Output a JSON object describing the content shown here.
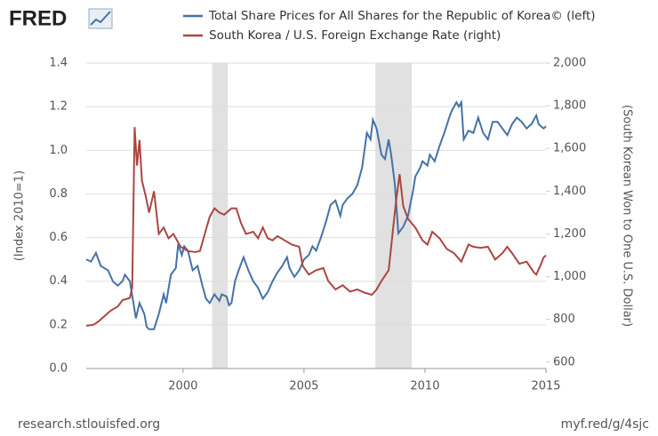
{
  "chart_data": {
    "type": "line",
    "logo": "FRED",
    "source": "research.stlouisfed.org",
    "link": "myf.red/g/4sjc",
    "ylabel": "(Index 2010=1)",
    "y2label": "(South Korean Won to One U.S. Dollar)",
    "xlim": [
      1996,
      2015
    ],
    "xticks": [
      2000,
      2005,
      2010,
      2015
    ],
    "ylim": [
      0,
      1.4
    ],
    "yticks": [
      {
        "value": 0,
        "label": "0.0"
      },
      0.2,
      0.4,
      0.6,
      0.8,
      {
        "value": 1,
        "label": "1.0"
      },
      1.2,
      1.4
    ],
    "y2lim": [
      570,
      2000
    ],
    "y2ticks": [
      600,
      800,
      {
        "value": 1000,
        "label": "1,000"
      },
      {
        "value": 1200,
        "label": "1,200"
      },
      {
        "value": 1400,
        "label": "1,400"
      },
      {
        "value": 1600,
        "label": "1,600"
      },
      {
        "value": 1800,
        "label": "1,800"
      },
      {
        "value": 2000,
        "label": "2,000"
      }
    ],
    "grid": true,
    "recessions": [
      [
        2001.2,
        2001.85
      ],
      [
        2007.95,
        2009.45
      ]
    ],
    "recession_color": "#e1e1e1",
    "series": [
      {
        "name": "Total Share Prices for All Shares for the Republic of Korea© (left)",
        "color": "#4572a7",
        "axis": "y",
        "x": [
          1996.0,
          1996.2,
          1996.4,
          1996.6,
          1996.9,
          1997.1,
          1997.3,
          1997.5,
          1997.6,
          1997.8,
          1997.95,
          1998.05,
          1998.2,
          1998.4,
          1998.5,
          1998.6,
          1998.8,
          1999.0,
          1999.2,
          1999.3,
          1999.5,
          1999.7,
          1999.8,
          1999.95,
          2000.05,
          2000.2,
          2000.4,
          2000.6,
          2000.8,
          2000.95,
          2001.1,
          2001.3,
          2001.5,
          2001.6,
          2001.8,
          2001.9,
          2002.0,
          2002.15,
          2002.3,
          2002.5,
          2002.7,
          2002.9,
          2003.1,
          2003.3,
          2003.5,
          2003.7,
          2003.9,
          2004.1,
          2004.3,
          2004.4,
          2004.6,
          2004.8,
          2005.0,
          2005.2,
          2005.35,
          2005.5,
          2005.7,
          2005.9,
          2006.1,
          2006.3,
          2006.5,
          2006.6,
          2006.8,
          2007.0,
          2007.2,
          2007.4,
          2007.5,
          2007.6,
          2007.75,
          2007.85,
          2008.0,
          2008.2,
          2008.35,
          2008.5,
          2008.6,
          2008.75,
          2008.9,
          2009.1,
          2009.3,
          2009.5,
          2009.6,
          2009.8,
          2009.9,
          2010.1,
          2010.2,
          2010.4,
          2010.6,
          2010.8,
          2011.0,
          2011.1,
          2011.3,
          2011.4,
          2011.5,
          2011.6,
          2011.8,
          2012.0,
          2012.2,
          2012.4,
          2012.6,
          2012.8,
          2013.0,
          2013.2,
          2013.4,
          2013.6,
          2013.8,
          2014.0,
          2014.2,
          2014.4,
          2014.6,
          2014.7,
          2014.9,
          2015.0
        ],
        "values": [
          0.5,
          0.49,
          0.53,
          0.47,
          0.45,
          0.4,
          0.38,
          0.4,
          0.43,
          0.4,
          0.3,
          0.23,
          0.3,
          0.25,
          0.19,
          0.18,
          0.18,
          0.25,
          0.34,
          0.3,
          0.43,
          0.46,
          0.57,
          0.52,
          0.56,
          0.54,
          0.45,
          0.47,
          0.38,
          0.32,
          0.3,
          0.34,
          0.31,
          0.34,
          0.33,
          0.29,
          0.3,
          0.4,
          0.45,
          0.51,
          0.45,
          0.4,
          0.37,
          0.32,
          0.35,
          0.4,
          0.44,
          0.47,
          0.51,
          0.46,
          0.42,
          0.45,
          0.5,
          0.52,
          0.56,
          0.54,
          0.6,
          0.67,
          0.75,
          0.77,
          0.7,
          0.75,
          0.78,
          0.8,
          0.84,
          0.92,
          1.0,
          1.08,
          1.05,
          1.14,
          1.1,
          0.98,
          0.96,
          1.05,
          0.98,
          0.85,
          0.62,
          0.65,
          0.7,
          0.81,
          0.88,
          0.92,
          0.95,
          0.93,
          0.98,
          0.95,
          1.02,
          1.08,
          1.15,
          1.18,
          1.22,
          1.2,
          1.22,
          1.05,
          1.09,
          1.08,
          1.15,
          1.08,
          1.05,
          1.13,
          1.13,
          1.1,
          1.07,
          1.12,
          1.15,
          1.13,
          1.1,
          1.12,
          1.16,
          1.12,
          1.1,
          1.11
        ]
      },
      {
        "name": "South Korea / U.S. Foreign Exchange Rate (right)",
        "color": "#aa4643",
        "axis": "y2",
        "x": [
          1996.0,
          1996.3,
          1996.5,
          1996.8,
          1997.0,
          1997.3,
          1997.5,
          1997.8,
          1997.9,
          1998.0,
          1998.1,
          1998.2,
          1998.3,
          1998.45,
          1998.6,
          1998.8,
          1999.0,
          1999.2,
          1999.4,
          1999.6,
          1999.9,
          2000.2,
          2000.5,
          2000.7,
          2000.9,
          2001.1,
          2001.3,
          2001.5,
          2001.7,
          2002.0,
          2002.2,
          2002.4,
          2002.6,
          2002.9,
          2003.1,
          2003.3,
          2003.5,
          2003.7,
          2003.9,
          2004.2,
          2004.5,
          2004.8,
          2004.95,
          2005.2,
          2005.5,
          2005.8,
          2006.0,
          2006.3,
          2006.6,
          2006.9,
          2007.2,
          2007.5,
          2007.8,
          2008.0,
          2008.2,
          2008.5,
          2008.8,
          2008.95,
          2009.1,
          2009.3,
          2009.6,
          2009.9,
          2010.1,
          2010.3,
          2010.6,
          2010.9,
          2011.2,
          2011.5,
          2011.8,
          2012.0,
          2012.3,
          2012.6,
          2012.9,
          2013.2,
          2013.4,
          2013.6,
          2013.9,
          2014.2,
          2014.5,
          2014.6,
          2014.8,
          2014.9,
          2015.0
        ],
        "values": [
          770,
          775,
          790,
          820,
          840,
          860,
          890,
          900,
          950,
          1700,
          1520,
          1640,
          1450,
          1380,
          1300,
          1400,
          1200,
          1230,
          1180,
          1200,
          1140,
          1120,
          1115,
          1120,
          1200,
          1280,
          1320,
          1300,
          1290,
          1320,
          1320,
          1250,
          1200,
          1210,
          1180,
          1230,
          1180,
          1170,
          1190,
          1170,
          1150,
          1140,
          1050,
          1010,
          1030,
          1040,
          980,
          940,
          960,
          930,
          940,
          925,
          915,
          940,
          980,
          1030,
          1350,
          1480,
          1330,
          1270,
          1230,
          1170,
          1150,
          1210,
          1180,
          1130,
          1110,
          1070,
          1150,
          1140,
          1135,
          1140,
          1080,
          1110,
          1140,
          1110,
          1060,
          1070,
          1020,
          1010,
          1060,
          1090,
          1100
        ]
      }
    ]
  }
}
